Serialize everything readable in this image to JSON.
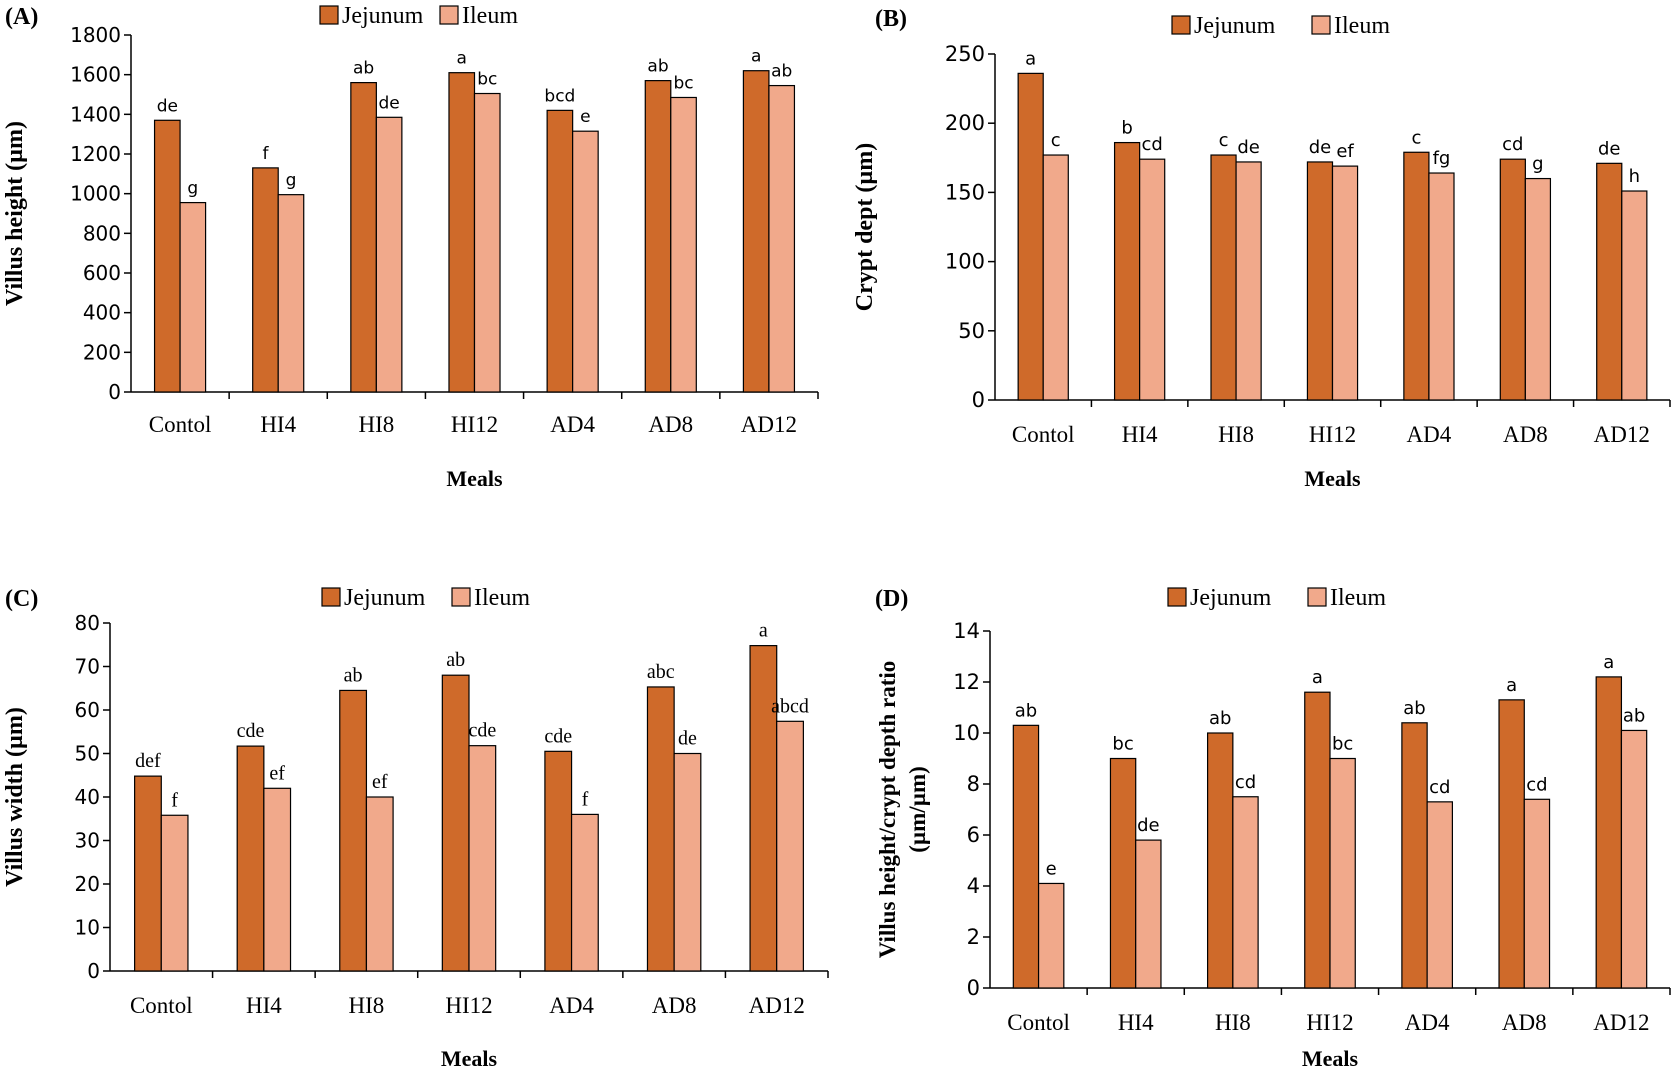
{
  "colors": {
    "jejunum": "#CF6A2A",
    "ileum": "#F1A98B",
    "axis": "#000000"
  },
  "chart_data": [
    {
      "panel": "(A)",
      "type": "bar",
      "title": "",
      "xlabel": "Meals",
      "ylabel": "Villus height (µm)",
      "categories": [
        "Contol",
        "HI4",
        "HI8",
        "HI12",
        "AD4",
        "AD8",
        "AD12"
      ],
      "ylim": [
        0,
        1800
      ],
      "yticks": [
        "0",
        "200",
        "400",
        "600",
        "800",
        "1000",
        "1200",
        "1400",
        "1600",
        "1800"
      ],
      "legend": "top-center",
      "series": [
        {
          "name": "Jejunum",
          "values": [
            1370,
            1130,
            1560,
            1610,
            1420,
            1570,
            1620
          ],
          "labels": [
            "de",
            "f",
            "ab",
            "a",
            "bcd",
            "ab",
            "a"
          ]
        },
        {
          "name": "Ileum",
          "values": [
            955,
            995,
            1385,
            1505,
            1315,
            1485,
            1545
          ],
          "labels": [
            "g",
            "g",
            "de",
            "bc",
            "e",
            "bc",
            "ab"
          ]
        }
      ]
    },
    {
      "panel": "(B)",
      "type": "bar",
      "title": "",
      "xlabel": "Meals",
      "ylabel": "Crypt dept (µm)",
      "categories": [
        "Contol",
        "HI4",
        "HI8",
        "HI12",
        "AD4",
        "AD8",
        "AD12"
      ],
      "ylim": [
        0,
        250
      ],
      "yticks": [
        "0",
        "50",
        "100",
        "150",
        "200",
        "250"
      ],
      "legend": "top-center",
      "series": [
        {
          "name": "Jejunum",
          "values": [
            236,
            186,
            177,
            172,
            179,
            174,
            171
          ],
          "labels": [
            "a",
            "b",
            "c",
            "de",
            "c",
            "cd",
            "de"
          ]
        },
        {
          "name": "Ileum",
          "values": [
            177,
            174,
            172,
            169,
            164,
            160,
            151
          ],
          "labels": [
            "c",
            "cd",
            "de",
            "ef",
            "fg",
            "g",
            "h"
          ]
        }
      ]
    },
    {
      "panel": "(C)",
      "type": "bar",
      "title": "",
      "xlabel": "Meals",
      "ylabel": "Villus width (µm)",
      "categories": [
        "Contol",
        "HI4",
        "HI8",
        "HI12",
        "AD4",
        "AD8",
        "AD12"
      ],
      "ylim": [
        0,
        80
      ],
      "yticks": [
        "0",
        "10",
        "20",
        "30",
        "40",
        "50",
        "60",
        "70",
        "80"
      ],
      "legend": "top-center",
      "series": [
        {
          "name": "Jejunum",
          "values": [
            44.8,
            51.7,
            64.5,
            68,
            50.5,
            65.3,
            74.8
          ],
          "labels": [
            "def",
            "cde",
            "ab",
            "ab",
            "cde",
            "abc",
            "a"
          ]
        },
        {
          "name": "Ileum",
          "values": [
            35.8,
            42,
            40,
            51.8,
            36,
            50,
            57.4
          ],
          "labels": [
            "f",
            "ef",
            "ef",
            "cde",
            "f",
            "de",
            "abcd"
          ]
        }
      ]
    },
    {
      "panel": "(D)",
      "type": "bar",
      "title": "",
      "xlabel": "Meals",
      "ylabel": "Villus height/crypt depth ratio (µm/µm)",
      "ylabel_lines": [
        "Villus height/crypt depth ratio",
        "(µm/µm)"
      ],
      "categories": [
        "Contol",
        "HI4",
        "HI8",
        "HI12",
        "AD4",
        "AD8",
        "AD12"
      ],
      "ylim": [
        0,
        14
      ],
      "yticks": [
        "0",
        "2",
        "4",
        "6",
        "8",
        "10",
        "12",
        "14"
      ],
      "legend": "top-center",
      "series": [
        {
          "name": "Jejunum",
          "values": [
            10.3,
            9,
            10,
            11.6,
            10.4,
            11.3,
            12.2
          ],
          "labels": [
            "ab",
            "bc",
            "ab",
            "a",
            "ab",
            "a",
            "a"
          ]
        },
        {
          "name": "Ileum",
          "values": [
            4.1,
            5.8,
            7.5,
            9,
            7.3,
            7.4,
            10.1
          ],
          "labels": [
            "e",
            "de",
            "cd",
            "bc",
            "cd",
            "cd",
            "ab"
          ]
        }
      ]
    }
  ]
}
